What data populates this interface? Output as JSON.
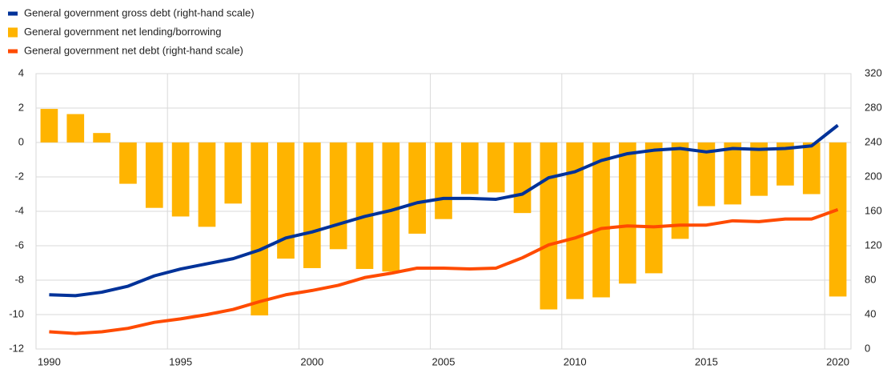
{
  "chart_data": {
    "type": "bar_line",
    "x": [
      1990,
      1991,
      1992,
      1993,
      1994,
      1995,
      1996,
      1997,
      1998,
      1999,
      2000,
      2001,
      2002,
      2003,
      2004,
      2005,
      2006,
      2007,
      2008,
      2009,
      2010,
      2011,
      2012,
      2013,
      2014,
      2015,
      2016,
      2017,
      2018,
      2019,
      2020
    ],
    "series": [
      {
        "name": "General government gross debt (right-hand scale)",
        "type": "line",
        "axis": "y2",
        "color": "#003299",
        "values": [
          63,
          62,
          66,
          73,
          85,
          93,
          99,
          105,
          115,
          129,
          136,
          145,
          154,
          161,
          170,
          175,
          175,
          174,
          180,
          199,
          206,
          219,
          227,
          231,
          233,
          229,
          233,
          232,
          233,
          236,
          260
        ]
      },
      {
        "name": "General government net lending/borrowing",
        "type": "bar",
        "color": "#ffb400",
        "values": [
          1.95,
          1.65,
          0.55,
          -2.4,
          -3.8,
          -4.3,
          -4.9,
          -3.55,
          -10.05,
          -6.75,
          -7.3,
          -6.2,
          -7.35,
          -7.5,
          -5.3,
          -4.45,
          -3.0,
          -2.9,
          -4.1,
          -9.7,
          -9.1,
          -9.0,
          -8.2,
          -7.6,
          -5.6,
          -3.7,
          -3.6,
          -3.1,
          -2.5,
          -3.0,
          -8.95
        ]
      },
      {
        "name": "General government net debt (right-hand scale)",
        "type": "line",
        "axis": "y2",
        "color": "#ff4b00",
        "values": [
          20,
          18,
          20,
          24,
          31,
          35,
          40,
          46,
          55,
          63,
          68,
          74,
          83,
          88,
          94,
          94,
          93,
          94,
          106,
          121,
          129,
          140,
          143,
          142,
          144,
          144,
          149,
          148,
          151,
          151,
          162
        ]
      }
    ],
    "xlim": [
      1989.5,
      2020.5
    ],
    "xticks": [
      1990,
      1995,
      2000,
      2005,
      2010,
      2015,
      2020
    ],
    "ylim": [
      -12,
      4
    ],
    "yticks": [
      -12,
      -10,
      -8,
      -6,
      -4,
      -2,
      0,
      2,
      4
    ],
    "y2lim": [
      0,
      320
    ],
    "y2ticks": [
      0,
      40,
      80,
      120,
      160,
      200,
      240,
      280,
      320
    ],
    "grid": true,
    "legend": "top-left"
  }
}
